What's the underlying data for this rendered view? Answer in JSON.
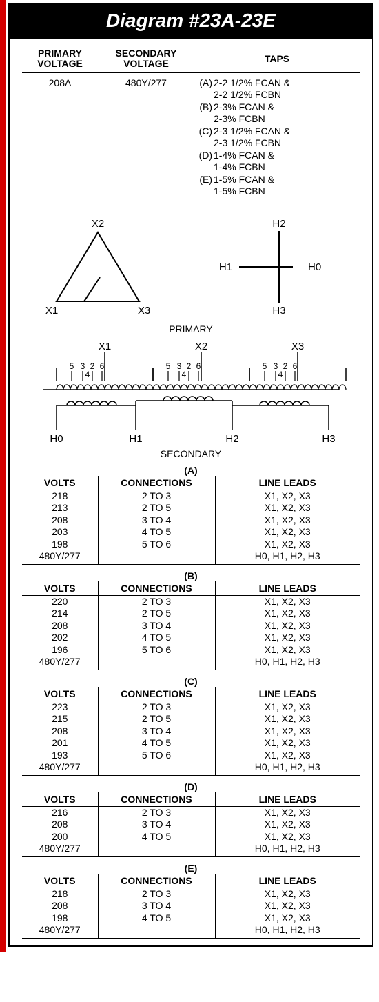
{
  "title": "Diagram #23A-23E",
  "colors": {
    "accent": "#d40000",
    "header_bg": "#000000",
    "header_fg": "#ffffff",
    "rule": "#000000"
  },
  "spec": {
    "headers": {
      "primary": "PRIMARY VOLTAGE",
      "secondary": "SECONDARY VOLTAGE",
      "taps": "TAPS"
    },
    "primary_value": "208Δ",
    "secondary_value": "480Y/277",
    "taps": [
      {
        "label": "(A)",
        "l1": "2-2 1/2% FCAN &",
        "l2": "2-2 1/2% FCBN"
      },
      {
        "label": "(B)",
        "l1": "2-3% FCAN &",
        "l2": "2-3% FCBN"
      },
      {
        "label": "(C)",
        "l1": "2-3 1/2% FCAN &",
        "l2": "2-3 1/2% FCBN"
      },
      {
        "label": "(D)",
        "l1": "1-4% FCAN &",
        "l2": "1-4% FCBN"
      },
      {
        "label": "(E)",
        "l1": "1-5% FCAN &",
        "l2": "1-5% FCBN"
      }
    ]
  },
  "schematic": {
    "delta_labels": {
      "top": "X2",
      "left": "X1",
      "right": "X3"
    },
    "wye_labels": {
      "left": "H1",
      "top": "H2",
      "bottom": "H3",
      "neutral": "H0"
    },
    "primary_label": "PRIMARY",
    "secondary_label": "SECONDARY",
    "winding_top": {
      "x1": "X1",
      "x2": "X2",
      "x3": "X3",
      "taps": [
        "5",
        "3",
        "2",
        "6",
        "4"
      ]
    },
    "winding_bot": {
      "h0": "H0",
      "h1": "H1",
      "h2": "H2",
      "h3": "H3"
    }
  },
  "table_headers": {
    "volts": "VOLTS",
    "connections": "CONNECTIONS",
    "line_leads": "LINE LEADS"
  },
  "tables": [
    {
      "label": "(A)",
      "rows": [
        {
          "v": "218",
          "c": "2 TO 3",
          "l": "X1, X2, X3"
        },
        {
          "v": "213",
          "c": "2 TO 5",
          "l": "X1, X2, X3"
        },
        {
          "v": "208",
          "c": "3 TO 4",
          "l": "X1, X2, X3"
        },
        {
          "v": "203",
          "c": "4 TO 5",
          "l": "X1, X2, X3"
        },
        {
          "v": "198",
          "c": "5 TO 6",
          "l": "X1, X2, X3"
        },
        {
          "v": "480Y/277",
          "c": "",
          "l": "H0, H1, H2, H3"
        }
      ]
    },
    {
      "label": "(B)",
      "rows": [
        {
          "v": "220",
          "c": "2 TO 3",
          "l": "X1, X2, X3"
        },
        {
          "v": "214",
          "c": "2 TO 5",
          "l": "X1, X2, X3"
        },
        {
          "v": "208",
          "c": "3 TO 4",
          "l": "X1, X2, X3"
        },
        {
          "v": "202",
          "c": "4 TO 5",
          "l": "X1, X2, X3"
        },
        {
          "v": "196",
          "c": "5 TO 6",
          "l": "X1, X2, X3"
        },
        {
          "v": "480Y/277",
          "c": "",
          "l": "H0, H1, H2, H3"
        }
      ]
    },
    {
      "label": "(C)",
      "rows": [
        {
          "v": "223",
          "c": "2 TO 3",
          "l": "X1, X2, X3"
        },
        {
          "v": "215",
          "c": "2 TO 5",
          "l": "X1, X2, X3"
        },
        {
          "v": "208",
          "c": "3 TO 4",
          "l": "X1, X2, X3"
        },
        {
          "v": "201",
          "c": "4 TO 5",
          "l": "X1, X2, X3"
        },
        {
          "v": "193",
          "c": "5 TO 6",
          "l": "X1, X2, X3"
        },
        {
          "v": "480Y/277",
          "c": "",
          "l": "H0, H1, H2, H3"
        }
      ]
    },
    {
      "label": "(D)",
      "rows": [
        {
          "v": "216",
          "c": "2 TO 3",
          "l": "X1, X2, X3"
        },
        {
          "v": "208",
          "c": "3 TO 4",
          "l": "X1, X2, X3"
        },
        {
          "v": "200",
          "c": "4 TO 5",
          "l": "X1, X2, X3"
        },
        {
          "v": "480Y/277",
          "c": "",
          "l": "H0, H1, H2, H3"
        }
      ]
    },
    {
      "label": "(E)",
      "rows": [
        {
          "v": "218",
          "c": "2 TO 3",
          "l": "X1, X2, X3"
        },
        {
          "v": "208",
          "c": "3 TO 4",
          "l": "X1, X2, X3"
        },
        {
          "v": "198",
          "c": "4 TO 5",
          "l": "X1, X2, X3"
        },
        {
          "v": "480Y/277",
          "c": "",
          "l": "H0, H1, H2, H3"
        }
      ]
    }
  ]
}
